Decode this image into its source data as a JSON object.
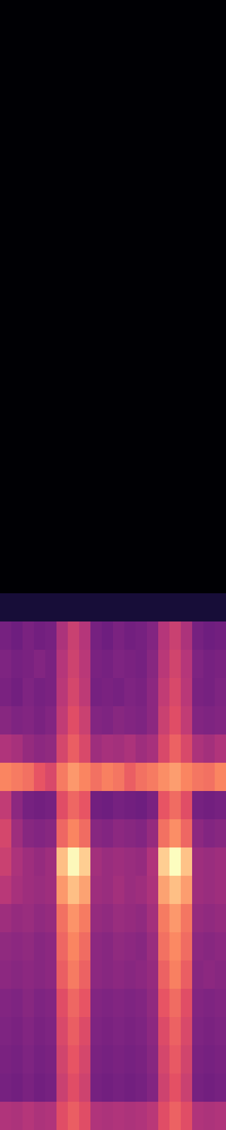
{
  "chart_data": {
    "type": "heatmap",
    "tick_labels": false,
    "cells": [
      [
        0,
        0,
        0,
        0,
        0,
        0,
        0,
        0,
        0,
        0,
        0,
        0,
        0,
        0,
        0,
        0,
        0,
        0,
        0,
        0
      ],
      [
        0,
        0,
        0,
        0,
        0,
        0,
        0,
        0,
        0,
        0,
        0,
        0,
        0,
        0,
        0,
        0,
        0,
        0,
        0,
        0
      ],
      [
        0,
        0,
        0,
        0,
        0,
        0,
        0,
        0,
        0,
        0,
        0,
        0,
        0,
        0,
        0,
        0,
        0,
        0,
        0,
        0
      ],
      [
        0,
        0,
        0,
        0,
        0,
        0,
        0,
        0,
        0,
        0,
        0,
        0,
        0,
        0,
        0,
        0,
        0,
        0,
        0,
        0
      ],
      [
        0,
        0,
        0,
        0,
        0,
        0,
        0,
        0,
        0,
        0,
        0,
        0,
        0,
        0,
        0,
        0,
        0,
        0,
        0,
        0
      ],
      [
        0,
        0,
        0,
        0,
        0,
        0,
        0,
        0,
        0,
        0,
        0,
        0,
        0,
        0,
        0,
        0,
        0,
        0,
        0,
        0
      ],
      [
        0,
        0,
        0,
        0,
        0,
        0,
        0,
        0,
        0,
        0,
        0,
        0,
        0,
        0,
        0,
        0,
        0,
        0,
        0,
        0
      ],
      [
        0,
        0,
        0,
        0,
        0,
        0,
        0,
        0,
        0,
        0,
        0,
        0,
        0,
        0,
        0,
        0,
        0,
        0,
        0,
        0
      ],
      [
        0,
        0,
        0,
        0,
        0,
        0,
        0,
        0,
        0,
        0,
        0,
        0,
        0,
        0,
        0,
        0,
        0,
        0,
        0,
        0
      ],
      [
        0,
        0,
        0,
        0,
        0,
        0,
        0,
        0,
        0,
        0,
        0,
        0,
        0,
        0,
        0,
        0,
        0,
        0,
        0,
        0
      ],
      [
        0,
        0,
        0,
        0,
        0,
        0,
        0,
        0,
        0,
        0,
        0,
        0,
        0,
        0,
        0,
        0,
        0,
        0,
        0,
        0
      ],
      [
        0,
        0,
        0,
        0,
        0,
        0,
        0,
        0,
        0,
        0,
        0,
        0,
        0,
        0,
        0,
        0,
        0,
        0,
        0,
        0
      ],
      [
        0,
        0,
        0,
        0,
        0,
        0,
        0,
        0,
        0,
        0,
        0,
        0,
        0,
        0,
        0,
        0,
        0,
        0,
        0,
        0
      ],
      [
        0,
        0,
        0,
        0,
        0,
        0,
        0,
        0,
        0,
        0,
        0,
        0,
        0,
        0,
        0,
        0,
        0,
        0,
        0,
        0
      ],
      [
        0,
        0,
        0,
        0,
        0,
        0,
        0,
        0,
        0,
        0,
        0,
        0,
        0,
        0,
        0,
        0,
        0,
        0,
        0,
        0
      ],
      [
        0,
        0,
        0,
        0,
        0,
        0,
        0,
        0,
        0,
        0,
        0,
        0,
        0,
        0,
        0,
        0,
        0,
        0,
        0,
        0
      ],
      [
        0,
        0,
        0,
        0,
        0,
        0,
        0,
        0,
        0,
        0,
        0,
        0,
        0,
        0,
        0,
        0,
        0,
        0,
        0,
        0
      ],
      [
        0,
        0,
        0,
        0,
        0,
        0,
        0,
        0,
        0,
        0,
        0,
        0,
        0,
        0,
        0,
        0,
        0,
        0,
        0,
        0
      ],
      [
        0,
        0,
        0,
        0,
        0,
        0,
        0,
        0,
        0,
        0,
        0,
        0,
        0,
        0,
        0,
        0,
        0,
        0,
        0,
        0
      ],
      [
        0,
        0,
        0,
        0,
        0,
        0,
        0,
        0,
        0,
        0,
        0,
        0,
        0,
        0,
        0,
        0,
        0,
        0,
        0,
        0
      ],
      [
        0,
        0,
        0,
        0,
        0,
        0,
        0,
        0,
        0,
        0,
        0,
        0,
        0,
        0,
        0,
        0,
        0,
        0,
        0,
        0
      ],
      [
        0.1,
        0.1,
        0.1,
        0.1,
        0.1,
        0.1,
        0.1,
        0.1,
        0.1,
        0.1,
        0.1,
        0.1,
        0.1,
        0.1,
        0.1,
        0.1,
        0.1,
        0.1,
        0.1,
        0.1
      ],
      [
        0.33,
        0.31,
        0.34,
        0.32,
        0.33,
        0.45,
        0.52,
        0.47,
        0.33,
        0.31,
        0.34,
        0.32,
        0.33,
        0.36,
        0.47,
        0.52,
        0.45,
        0.33,
        0.31,
        0.32
      ],
      [
        0.35,
        0.33,
        0.34,
        0.36,
        0.34,
        0.47,
        0.53,
        0.48,
        0.34,
        0.33,
        0.35,
        0.34,
        0.33,
        0.37,
        0.48,
        0.54,
        0.47,
        0.35,
        0.33,
        0.34
      ],
      [
        0.34,
        0.32,
        0.35,
        0.33,
        0.34,
        0.48,
        0.55,
        0.49,
        0.33,
        0.34,
        0.33,
        0.35,
        0.34,
        0.38,
        0.5,
        0.56,
        0.48,
        0.34,
        0.33,
        0.35
      ],
      [
        0.37,
        0.35,
        0.36,
        0.34,
        0.36,
        0.5,
        0.58,
        0.52,
        0.36,
        0.35,
        0.37,
        0.36,
        0.35,
        0.38,
        0.52,
        0.58,
        0.5,
        0.36,
        0.35,
        0.36
      ],
      [
        0.46,
        0.44,
        0.4,
        0.38,
        0.39,
        0.55,
        0.62,
        0.56,
        0.42,
        0.44,
        0.43,
        0.45,
        0.42,
        0.44,
        0.56,
        0.63,
        0.56,
        0.45,
        0.43,
        0.46
      ],
      [
        0.7,
        0.68,
        0.66,
        0.6,
        0.56,
        0.68,
        0.74,
        0.7,
        0.66,
        0.69,
        0.67,
        0.62,
        0.66,
        0.68,
        0.72,
        0.75,
        0.7,
        0.67,
        0.66,
        0.7
      ],
      [
        0.5,
        0.38,
        0.33,
        0.32,
        0.33,
        0.58,
        0.64,
        0.6,
        0.32,
        0.31,
        0.33,
        0.32,
        0.31,
        0.34,
        0.6,
        0.65,
        0.58,
        0.33,
        0.32,
        0.33
      ],
      [
        0.55,
        0.42,
        0.37,
        0.36,
        0.37,
        0.64,
        0.7,
        0.65,
        0.37,
        0.36,
        0.38,
        0.37,
        0.36,
        0.4,
        0.66,
        0.72,
        0.64,
        0.38,
        0.36,
        0.37
      ],
      [
        0.52,
        0.45,
        0.42,
        0.4,
        0.42,
        0.82,
        0.93,
        0.85,
        0.43,
        0.41,
        0.42,
        0.41,
        0.4,
        0.46,
        0.85,
        0.94,
        0.83,
        0.42,
        0.41,
        0.42
      ],
      [
        0.48,
        0.44,
        0.42,
        0.41,
        0.42,
        0.74,
        0.82,
        0.76,
        0.42,
        0.41,
        0.43,
        0.41,
        0.42,
        0.45,
        0.76,
        0.82,
        0.75,
        0.42,
        0.41,
        0.42
      ],
      [
        0.42,
        0.4,
        0.41,
        0.39,
        0.4,
        0.66,
        0.73,
        0.68,
        0.4,
        0.39,
        0.41,
        0.4,
        0.39,
        0.43,
        0.68,
        0.74,
        0.67,
        0.4,
        0.39,
        0.4
      ],
      [
        0.39,
        0.38,
        0.39,
        0.37,
        0.38,
        0.64,
        0.7,
        0.65,
        0.38,
        0.37,
        0.39,
        0.38,
        0.37,
        0.41,
        0.66,
        0.71,
        0.65,
        0.38,
        0.37,
        0.38
      ],
      [
        0.38,
        0.37,
        0.38,
        0.37,
        0.38,
        0.62,
        0.68,
        0.63,
        0.38,
        0.37,
        0.38,
        0.37,
        0.38,
        0.4,
        0.63,
        0.69,
        0.62,
        0.37,
        0.38,
        0.37
      ],
      [
        0.36,
        0.35,
        0.37,
        0.35,
        0.36,
        0.58,
        0.64,
        0.6,
        0.36,
        0.35,
        0.36,
        0.35,
        0.36,
        0.39,
        0.6,
        0.65,
        0.58,
        0.36,
        0.35,
        0.36
      ],
      [
        0.35,
        0.34,
        0.36,
        0.34,
        0.35,
        0.56,
        0.62,
        0.57,
        0.35,
        0.34,
        0.35,
        0.34,
        0.35,
        0.38,
        0.57,
        0.63,
        0.56,
        0.35,
        0.34,
        0.35
      ],
      [
        0.34,
        0.33,
        0.35,
        0.33,
        0.34,
        0.54,
        0.6,
        0.55,
        0.34,
        0.33,
        0.34,
        0.33,
        0.34,
        0.37,
        0.55,
        0.61,
        0.54,
        0.34,
        0.33,
        0.34
      ],
      [
        0.33,
        0.32,
        0.34,
        0.32,
        0.33,
        0.52,
        0.58,
        0.53,
        0.33,
        0.32,
        0.33,
        0.32,
        0.33,
        0.36,
        0.53,
        0.59,
        0.52,
        0.33,
        0.32,
        0.33
      ],
      [
        0.46,
        0.45,
        0.47,
        0.45,
        0.46,
        0.58,
        0.62,
        0.58,
        0.46,
        0.45,
        0.46,
        0.45,
        0.46,
        0.48,
        0.58,
        0.63,
        0.58,
        0.46,
        0.45,
        0.46
      ]
    ]
  }
}
